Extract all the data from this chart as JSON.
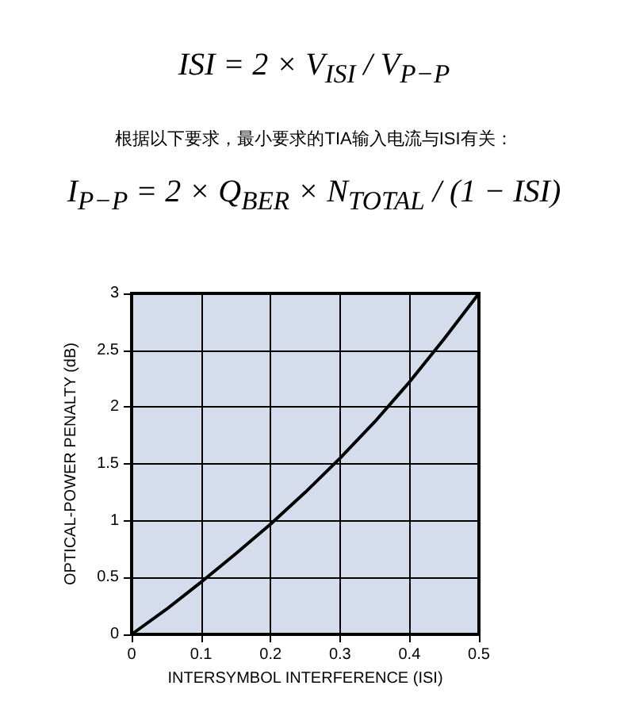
{
  "chart_data": {
    "type": "line",
    "xlabel": "INTERSYMBOL INTERFERENCE (ISI)",
    "ylabel": "OPTICAL-POWER PENALTY (dB)",
    "annotations": [
      "ISI = 2 × V$_{ISI}$ / V$_{P−P}$",
      "根据以下要求，最小要求的TIA输入电流与ISI有关：",
      "I$_{P−P}$ = 2 × Q$_{BER}$ × N$_{TOTAL}$ / (1 − ISI)"
    ],
    "x": [
      0,
      0.05,
      0.1,
      0.15,
      0.2,
      0.25,
      0.3,
      0.35,
      0.4,
      0.45,
      0.5
    ],
    "series": [
      {
        "color": "#000000",
        "values": [
          0,
          0.22,
          0.46,
          0.71,
          0.97,
          1.25,
          1.55,
          1.87,
          2.22,
          2.6,
          3.0
        ]
      }
    ],
    "xlim": [
      0,
      0.5
    ],
    "xticks": [
      0,
      0.1,
      0.2,
      0.3,
      0.4,
      0.5
    ],
    "ylim": [
      0,
      3
    ],
    "yticks": [
      0,
      0.5,
      1,
      1.5,
      2,
      2.5,
      3
    ],
    "grid": true,
    "marker": "none",
    "line_style": "solid"
  }
}
